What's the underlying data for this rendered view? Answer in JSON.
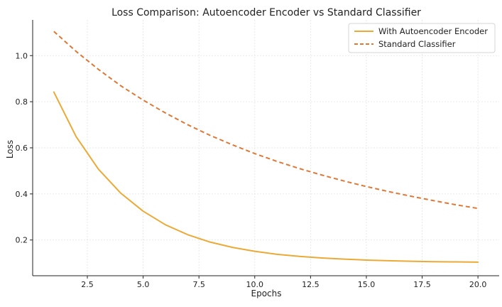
{
  "chart_data": {
    "type": "line",
    "title": "Loss Comparison: Autoencoder Encoder vs Standard Classifier",
    "xlabel": "Epochs",
    "ylabel": "Loss",
    "xlim": [
      0.05,
      20.95
    ],
    "ylim": [
      0.045,
      1.155
    ],
    "x_ticks": [
      2.5,
      5.0,
      7.5,
      10.0,
      12.5,
      15.0,
      17.5,
      20.0
    ],
    "x_tick_labels": [
      "2.5",
      "5.0",
      "7.5",
      "10.0",
      "12.5",
      "15.0",
      "17.5",
      "20.0"
    ],
    "y_ticks": [
      0.2,
      0.4,
      0.6,
      0.8,
      1.0
    ],
    "y_tick_labels": [
      "0.2",
      "0.4",
      "0.6",
      "0.8",
      "1.0"
    ],
    "grid": true,
    "legend_position": "top-right",
    "x": [
      1,
      2,
      3,
      4,
      5,
      6,
      7,
      8,
      9,
      10,
      11,
      12,
      13,
      14,
      15,
      16,
      17,
      18,
      19,
      20
    ],
    "series": [
      {
        "name": "With Autoencoder Encoder",
        "color": "#EBAA37",
        "style": "solid",
        "values": [
          0.842,
          0.648,
          0.507,
          0.403,
          0.325,
          0.266,
          0.223,
          0.191,
          0.168,
          0.151,
          0.138,
          0.129,
          0.122,
          0.117,
          0.113,
          0.11,
          0.108,
          0.106,
          0.105,
          0.104
        ]
      },
      {
        "name": "Standard Classifier",
        "color": "#DD7837",
        "style": "dashed",
        "values": [
          1.105,
          1.018,
          0.94,
          0.869,
          0.807,
          0.751,
          0.7,
          0.654,
          0.613,
          0.575,
          0.541,
          0.51,
          0.482,
          0.456,
          0.432,
          0.41,
          0.39,
          0.371,
          0.353,
          0.337
        ]
      }
    ]
  }
}
